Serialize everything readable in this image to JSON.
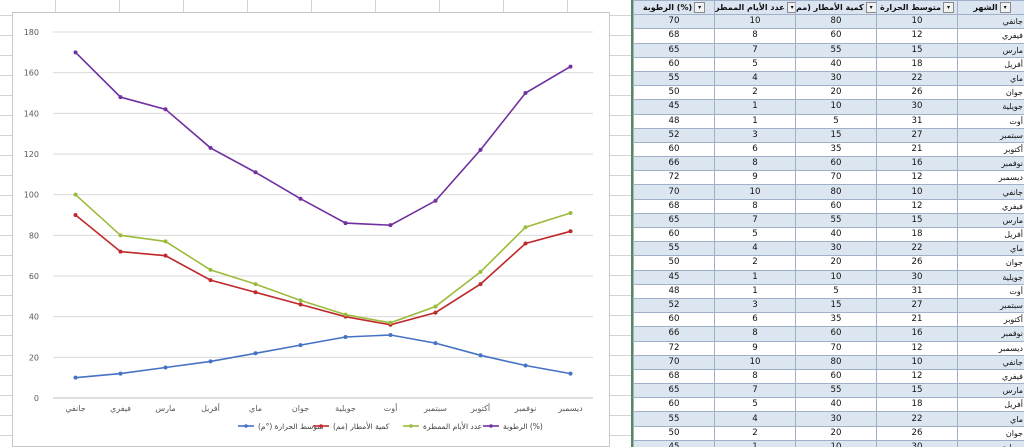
{
  "chart_data": {
    "type": "line",
    "categories": [
      "جانفي",
      "فيفري",
      "مارس",
      "أفريل",
      "ماي",
      "جوان",
      "جويلية",
      "أوت",
      "سبتمبر",
      "أكتوبر",
      "نوفمبر",
      "ديسمبر"
    ],
    "ylim": [
      0,
      180
    ],
    "yticks": [
      0,
      20,
      40,
      60,
      80,
      100,
      120,
      140,
      160,
      180
    ],
    "grid": "horizontal",
    "legend_position": "bottom",
    "stacked": true,
    "series": [
      {
        "name": "متوسط الحرارة (°م)",
        "color": "#4472c4",
        "values": [
          10,
          12,
          15,
          18,
          22,
          26,
          30,
          31,
          27,
          21,
          16,
          12
        ]
      },
      {
        "name": "كمية الأمطار (مم)",
        "color": "#c0292b",
        "values": [
          90,
          72,
          70,
          58,
          52,
          46,
          40,
          36,
          42,
          56,
          76,
          82
        ]
      },
      {
        "name": "عدد الأيام الممطرة",
        "color": "#9bbb3b",
        "values": [
          100,
          80,
          77,
          63,
          56,
          48,
          41,
          37,
          45,
          62,
          84,
          91
        ]
      },
      {
        "name": "الرطوبة (%)",
        "color": "#7030a0",
        "values": [
          170,
          148,
          142,
          123,
          111,
          98,
          86,
          85,
          97,
          122,
          150,
          163
        ]
      }
    ]
  },
  "table": {
    "headers": [
      "الرطوبة (%)",
      "عدد الأيام الممطر",
      "كمية الأمطار (مم",
      "متوسط الحرارة",
      "الشهر"
    ],
    "rows": [
      [
        "70",
        "10",
        "80",
        "10",
        "جانفي"
      ],
      [
        "68",
        "8",
        "60",
        "12",
        "فيفري"
      ],
      [
        "65",
        "7",
        "55",
        "15",
        "مارس"
      ],
      [
        "60",
        "5",
        "40",
        "18",
        "أفريل"
      ],
      [
        "55",
        "4",
        "30",
        "22",
        "ماي"
      ],
      [
        "50",
        "2",
        "20",
        "26",
        "جوان"
      ],
      [
        "45",
        "1",
        "10",
        "30",
        "جويلية"
      ],
      [
        "48",
        "1",
        "5",
        "31",
        "أوت"
      ],
      [
        "52",
        "3",
        "15",
        "27",
        "سبتمبر"
      ],
      [
        "60",
        "6",
        "35",
        "21",
        "أكتوبر"
      ],
      [
        "66",
        "8",
        "60",
        "16",
        "نوفمبر"
      ],
      [
        "72",
        "9",
        "70",
        "12",
        "ديسمبر"
      ],
      [
        "70",
        "10",
        "80",
        "10",
        "جانفي"
      ],
      [
        "68",
        "8",
        "60",
        "12",
        "فيفري"
      ],
      [
        "65",
        "7",
        "55",
        "15",
        "مارس"
      ],
      [
        "60",
        "5",
        "40",
        "18",
        "أفريل"
      ],
      [
        "55",
        "4",
        "30",
        "22",
        "ماي"
      ],
      [
        "50",
        "2",
        "20",
        "26",
        "جوان"
      ],
      [
        "45",
        "1",
        "10",
        "30",
        "جويلية"
      ],
      [
        "48",
        "1",
        "5",
        "31",
        "أوت"
      ],
      [
        "52",
        "3",
        "15",
        "27",
        "سبتمبر"
      ],
      [
        "60",
        "6",
        "35",
        "21",
        "أكتوبر"
      ],
      [
        "66",
        "8",
        "60",
        "16",
        "نوفمبر"
      ],
      [
        "72",
        "9",
        "70",
        "12",
        "ديسمبر"
      ],
      [
        "70",
        "10",
        "80",
        "10",
        "جانفي"
      ],
      [
        "68",
        "8",
        "60",
        "12",
        "فيفري"
      ],
      [
        "65",
        "7",
        "55",
        "15",
        "مارس"
      ],
      [
        "60",
        "5",
        "40",
        "18",
        "أفريل"
      ],
      [
        "55",
        "4",
        "30",
        "22",
        "ماي"
      ],
      [
        "50",
        "2",
        "20",
        "26",
        "جوان"
      ],
      [
        "45",
        "1",
        "10",
        "30",
        "جويلية"
      ]
    ]
  }
}
